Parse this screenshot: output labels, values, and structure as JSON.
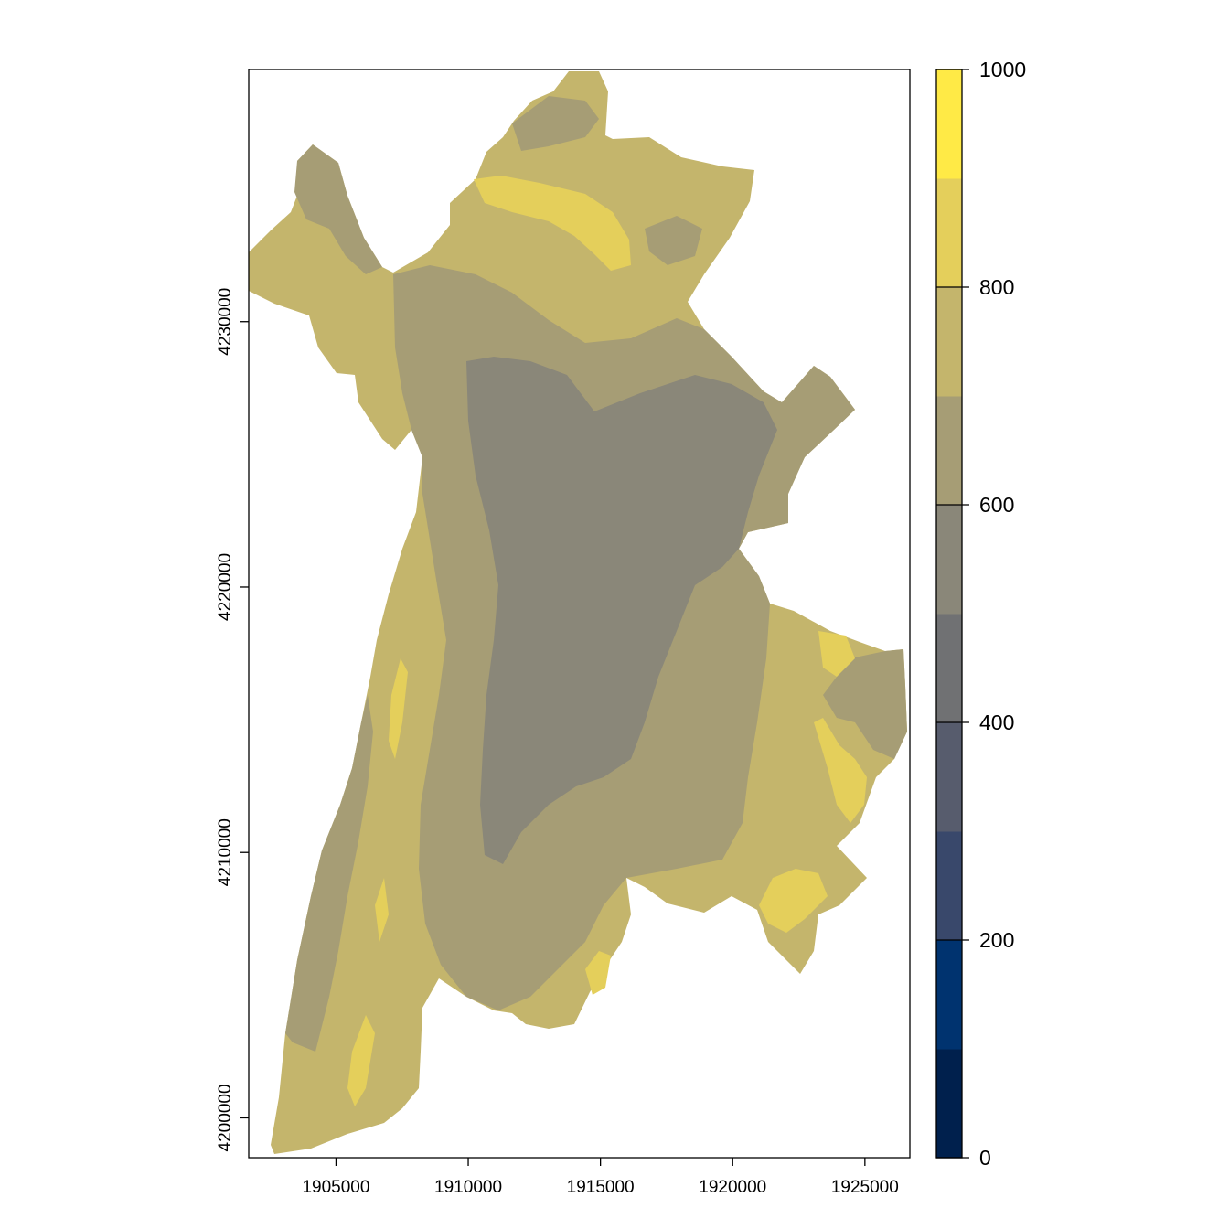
{
  "map": {
    "x_range": [
      1901700,
      1926700
    ],
    "y_range": [
      4198500,
      4239500
    ],
    "x_ticks": [
      {
        "value": 1905000,
        "label": "1905000"
      },
      {
        "value": 1910000,
        "label": "1910000"
      },
      {
        "value": 1915000,
        "label": "1915000"
      },
      {
        "value": 1920000,
        "label": "1920000"
      },
      {
        "value": 1925000,
        "label": "1925000"
      }
    ],
    "y_ticks": [
      {
        "value": 4200000,
        "label": "4200000"
      },
      {
        "value": 4210000,
        "label": "4210000"
      },
      {
        "value": 4220000,
        "label": "4220000"
      },
      {
        "value": 4230000,
        "label": "4230000"
      }
    ],
    "palette": "cividis",
    "value_classes": [
      {
        "from": 0,
        "to": 100,
        "color": "#00204d"
      },
      {
        "from": 100,
        "to": 200,
        "color": "#00336f"
      },
      {
        "from": 200,
        "to": 300,
        "color": "#39486b"
      },
      {
        "from": 300,
        "to": 400,
        "color": "#575c6d"
      },
      {
        "from": 400,
        "to": 500,
        "color": "#707173"
      },
      {
        "from": 500,
        "to": 600,
        "color": "#8a8779"
      },
      {
        "from": 600,
        "to": 700,
        "color": "#a69d75"
      },
      {
        "from": 700,
        "to": 800,
        "color": "#c4b56c"
      },
      {
        "from": 800,
        "to": 900,
        "color": "#e4cf5b"
      },
      {
        "from": 900,
        "to": 1000,
        "color": "#ffea46"
      }
    ]
  },
  "legend": {
    "range": [
      0,
      1000
    ],
    "ticks": [
      {
        "value": 0,
        "label": "0"
      },
      {
        "value": 200,
        "label": "200"
      },
      {
        "value": 400,
        "label": "400"
      },
      {
        "value": 600,
        "label": "600"
      },
      {
        "value": 800,
        "label": "800"
      },
      {
        "value": 1000,
        "label": "1000"
      }
    ]
  }
}
